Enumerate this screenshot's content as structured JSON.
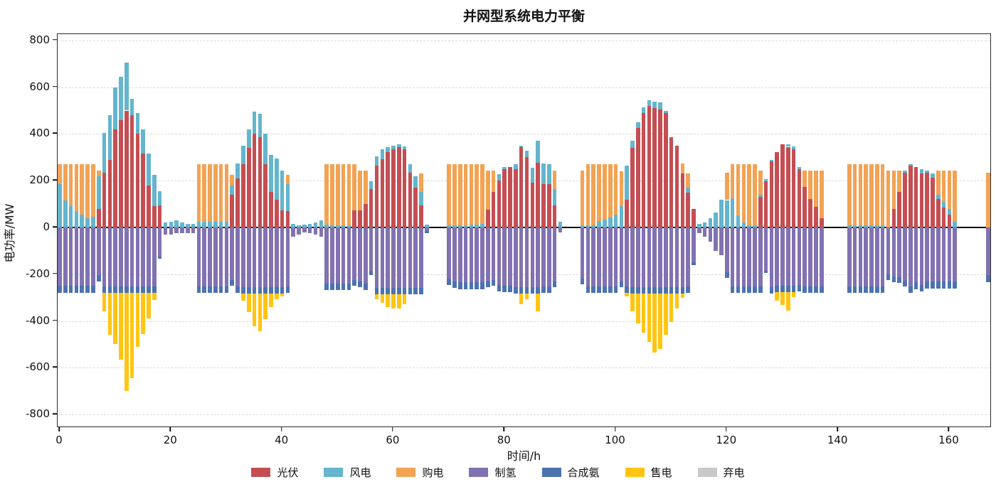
{
  "title": "并网型系统电力平衡",
  "axes": {
    "ylabel": "电功率/MW",
    "xlabel": "时间/h",
    "yticks": [
      -800,
      -600,
      -400,
      -200,
      0,
      200,
      400,
      600,
      800
    ],
    "xticks": [
      0,
      20,
      40,
      60,
      80,
      100,
      120,
      140,
      160
    ]
  },
  "chart_data": {
    "type": "bar",
    "stacked": true,
    "hours": 168,
    "xlim": [
      0,
      168
    ],
    "ylim": [
      -855,
      830
    ],
    "grid": "dashed horizontal",
    "legend_position": "bottom center",
    "title": "并网型系统电力平衡",
    "xlabel": "时间/h",
    "ylabel": "电功率/MW",
    "series": [
      {
        "name": "光伏",
        "color": "#c44e52",
        "values": [
          0,
          0,
          0,
          0,
          0,
          0,
          0,
          80,
          235,
          290,
          420,
          460,
          500,
          480,
          400,
          315,
          180,
          90,
          95,
          0,
          0,
          0,
          0,
          0,
          0,
          0,
          0,
          0,
          0,
          0,
          0,
          140,
          210,
          270,
          340,
          400,
          385,
          270,
          153,
          118,
          73,
          70,
          0,
          0,
          0,
          0,
          0,
          0,
          0,
          0,
          0,
          0,
          0,
          72,
          72,
          100,
          163,
          265,
          293,
          322,
          335,
          342,
          333,
          235,
          170,
          95,
          0,
          0,
          0,
          0,
          0,
          0,
          0,
          0,
          0,
          0,
          0,
          77,
          151,
          202,
          248,
          259,
          250,
          342,
          301,
          191,
          276,
          185,
          185,
          94,
          0,
          0,
          0,
          0,
          0,
          0,
          0,
          0,
          0,
          0,
          0,
          0,
          120,
          340,
          425,
          490,
          520,
          510,
          505,
          490,
          385,
          350,
          230,
          150,
          80,
          0,
          0,
          0,
          0,
          0,
          0,
          0,
          0,
          0,
          0,
          0,
          131,
          197,
          282,
          322,
          356,
          345,
          335,
          248,
          174,
          123,
          89,
          40,
          0,
          0,
          0,
          0,
          0,
          0,
          0,
          0,
          0,
          0,
          0,
          0,
          80,
          153,
          233,
          265,
          259,
          231,
          233,
          214,
          123,
          85,
          55,
          0,
          0,
          0,
          0,
          0,
          0,
          0
        ]
      },
      {
        "name": "风电",
        "color": "#64b5cd",
        "values": [
          185,
          115,
          90,
          70,
          55,
          40,
          45,
          140,
          170,
          190,
          180,
          185,
          205,
          70,
          90,
          105,
          135,
          135,
          60,
          20,
          25,
          30,
          20,
          15,
          15,
          25,
          25,
          25,
          25,
          25,
          25,
          40,
          65,
          80,
          80,
          96,
          100,
          130,
          157,
          176,
          171,
          115,
          15,
          10,
          12,
          15,
          20,
          30,
          12,
          10,
          10,
          10,
          10,
          0,
          0,
          0,
          34,
          40,
          40,
          20,
          15,
          14,
          14,
          35,
          50,
          57,
          12,
          0,
          0,
          0,
          8,
          8,
          8,
          10,
          12,
          12,
          15,
          0,
          0,
          26,
          11,
          0,
          20,
          8,
          26,
          65,
          94,
          89,
          86,
          69,
          24,
          0,
          0,
          0,
          8,
          10,
          10,
          26,
          32,
          43,
          55,
          90,
          145,
          30,
          25,
          25,
          25,
          28,
          30,
          10,
          0,
          0,
          0,
          20,
          0,
          15,
          20,
          40,
          65,
          120,
          117,
          125,
          52,
          20,
          8,
          8,
          10,
          10,
          8,
          0,
          0,
          12,
          12,
          10,
          0,
          0,
          0,
          0,
          0,
          0,
          0,
          0,
          8,
          8,
          8,
          8,
          8,
          8,
          8,
          0,
          0,
          0,
          11,
          6,
          0,
          17,
          11,
          17,
          17,
          23,
          25,
          25,
          0,
          0,
          0,
          0,
          0,
          0
        ]
      },
      {
        "name": "购电",
        "color": "#f2a354",
        "values": [
          85,
          155,
          180,
          200,
          215,
          230,
          225,
          22,
          0,
          0,
          0,
          0,
          0,
          0,
          0,
          0,
          0,
          0,
          0,
          0,
          0,
          0,
          0,
          0,
          0,
          245,
          245,
          245,
          245,
          245,
          245,
          45,
          0,
          0,
          0,
          0,
          0,
          0,
          0,
          0,
          0,
          40,
          0,
          0,
          0,
          0,
          0,
          0,
          258,
          260,
          260,
          260,
          260,
          198,
          170,
          142,
          0,
          0,
          0,
          0,
          0,
          0,
          0,
          0,
          0,
          78,
          0,
          0,
          0,
          0,
          262,
          262,
          262,
          260,
          258,
          258,
          255,
          165,
          91,
          0,
          0,
          0,
          0,
          0,
          0,
          0,
          0,
          0,
          0,
          79,
          0,
          0,
          0,
          0,
          234,
          260,
          260,
          244,
          238,
          227,
          215,
          150,
          0,
          0,
          0,
          0,
          0,
          0,
          0,
          0,
          0,
          0,
          45,
          60,
          0,
          0,
          0,
          0,
          0,
          0,
          116,
          145,
          218,
          250,
          262,
          262,
          101,
          0,
          0,
          0,
          0,
          0,
          0,
          0,
          68,
          119,
          153,
          202,
          0,
          0,
          0,
          0,
          262,
          262,
          262,
          262,
          262,
          262,
          262,
          242,
          162,
          89,
          0,
          0,
          0,
          0,
          0,
          0,
          102,
          134,
          162,
          217,
          0,
          0,
          0,
          0,
          0,
          235
        ]
      },
      {
        "name": "制氢",
        "color": "#8172b2",
        "values": [
          -250,
          -250,
          -250,
          -250,
          -250,
          -250,
          -250,
          -205,
          -252,
          -252,
          -252,
          -252,
          -252,
          -252,
          -252,
          -252,
          -252,
          -252,
          -125,
          -30,
          -30,
          -25,
          -25,
          -25,
          -25,
          -252,
          -252,
          -252,
          -252,
          -252,
          -252,
          -224,
          -252,
          -255,
          -255,
          -255,
          -255,
          -255,
          -255,
          -255,
          -255,
          -252,
          -38,
          -30,
          -20,
          -25,
          -30,
          -40,
          -240,
          -240,
          -240,
          -240,
          -240,
          -224,
          -230,
          -241,
          -184,
          -258,
          -258,
          -258,
          -258,
          -258,
          -258,
          -258,
          -258,
          -258,
          -15,
          0,
          0,
          0,
          -218,
          -230,
          -235,
          -235,
          -235,
          -235,
          -235,
          -230,
          -225,
          -245,
          -250,
          -250,
          -255,
          -255,
          -255,
          -255,
          -255,
          -252,
          -252,
          -230,
          -20,
          0,
          0,
          0,
          -218,
          -252,
          -252,
          -252,
          -252,
          -252,
          -252,
          -230,
          -252,
          -255,
          -255,
          -255,
          -255,
          -255,
          -255,
          -255,
          -255,
          -255,
          -255,
          -252,
          -150,
          -25,
          -40,
          -60,
          -100,
          -120,
          -190,
          -252,
          -252,
          -252,
          -252,
          -252,
          -252,
          -184,
          -255,
          -250,
          -250,
          -250,
          -250,
          -247,
          -252,
          -252,
          -252,
          -252,
          0,
          0,
          0,
          0,
          -252,
          -252,
          -252,
          -252,
          -252,
          -252,
          -252,
          -201,
          -210,
          -212,
          -228,
          -252,
          -235,
          -245,
          -232,
          -232,
          -232,
          -232,
          -232,
          -232,
          0,
          0,
          0,
          0,
          0,
          -205
        ]
      },
      {
        "name": "合成氨",
        "color": "#4c72b0",
        "values": [
          -30,
          -30,
          -30,
          -30,
          -30,
          -30,
          -30,
          -25,
          -28,
          -28,
          -28,
          -28,
          -28,
          -28,
          -28,
          -28,
          -28,
          -28,
          -10,
          0,
          0,
          0,
          0,
          0,
          0,
          -28,
          -28,
          -28,
          -28,
          -28,
          -28,
          -25,
          -28,
          -28,
          -28,
          -28,
          -28,
          -28,
          -28,
          -28,
          -28,
          -28,
          0,
          0,
          0,
          0,
          0,
          0,
          -28,
          -28,
          -28,
          -28,
          -28,
          -25,
          -25,
          -25,
          -20,
          -28,
          -28,
          -28,
          -28,
          -28,
          -28,
          -28,
          -28,
          -28,
          -8,
          0,
          0,
          0,
          -28,
          -28,
          -28,
          -28,
          -28,
          -28,
          -28,
          -25,
          -25,
          -28,
          -28,
          -28,
          -28,
          -28,
          -28,
          -28,
          -28,
          -28,
          -28,
          -25,
          0,
          0,
          0,
          0,
          -25,
          -28,
          -28,
          -28,
          -28,
          -28,
          -28,
          -25,
          -28,
          -28,
          -28,
          -28,
          -28,
          -28,
          -28,
          -28,
          -28,
          -28,
          -28,
          -28,
          -10,
          0,
          0,
          0,
          0,
          0,
          -25,
          -28,
          -28,
          -28,
          -28,
          -28,
          -28,
          -12,
          -28,
          -28,
          -28,
          -28,
          -28,
          -28,
          -28,
          -28,
          -28,
          -28,
          0,
          0,
          0,
          0,
          -28,
          -28,
          -28,
          -28,
          -28,
          -28,
          -28,
          -25,
          -25,
          -25,
          -25,
          -28,
          -28,
          -28,
          -28,
          -28,
          -28,
          -28,
          -28,
          -28,
          0,
          0,
          0,
          0,
          0,
          -28
        ]
      },
      {
        "name": "售电",
        "color": "#ffc512",
        "values": [
          0,
          0,
          0,
          0,
          0,
          0,
          0,
          0,
          -80,
          -180,
          -220,
          -285,
          -420,
          -365,
          -230,
          -175,
          -110,
          -30,
          0,
          0,
          0,
          0,
          0,
          0,
          0,
          0,
          0,
          0,
          0,
          0,
          0,
          0,
          0,
          -30,
          -80,
          -140,
          -160,
          -110,
          -58,
          -25,
          -12,
          0,
          0,
          0,
          0,
          0,
          0,
          0,
          0,
          0,
          0,
          0,
          0,
          0,
          0,
          0,
          0,
          -20,
          -35,
          -55,
          -60,
          -60,
          -42,
          0,
          0,
          0,
          0,
          0,
          0,
          0,
          0,
          0,
          0,
          0,
          0,
          0,
          0,
          0,
          0,
          0,
          0,
          0,
          0,
          -45,
          -25,
          0,
          -75,
          0,
          0,
          0,
          0,
          0,
          0,
          0,
          0,
          0,
          0,
          0,
          0,
          0,
          0,
          0,
          -15,
          -77,
          -127,
          -167,
          -207,
          -252,
          -237,
          -177,
          -122,
          -62,
          -17,
          0,
          0,
          0,
          0,
          0,
          0,
          0,
          0,
          0,
          0,
          0,
          0,
          0,
          0,
          0,
          0,
          -35,
          -52,
          -78,
          -20,
          0,
          0,
          0,
          0,
          0,
          0,
          0,
          0,
          0,
          0,
          0,
          0,
          0,
          0,
          0,
          0,
          0,
          0,
          0,
          0,
          0,
          0,
          0,
          0,
          0,
          0,
          0,
          0,
          0,
          0,
          0,
          0,
          0,
          0,
          0
        ]
      },
      {
        "name": "弃电",
        "color": "#c9c9c9",
        "values": [
          0,
          0,
          0,
          0,
          0,
          0,
          0,
          0,
          0,
          0,
          0,
          0,
          0,
          0,
          0,
          0,
          0,
          0,
          0,
          0,
          0,
          0,
          0,
          0,
          0,
          0,
          0,
          0,
          0,
          0,
          0,
          0,
          0,
          0,
          0,
          0,
          0,
          0,
          0,
          0,
          0,
          0,
          0,
          0,
          0,
          0,
          0,
          0,
          0,
          0,
          0,
          0,
          0,
          0,
          0,
          0,
          0,
          0,
          0,
          0,
          0,
          0,
          0,
          0,
          0,
          0,
          0,
          0,
          0,
          0,
          0,
          0,
          0,
          0,
          0,
          0,
          0,
          0,
          0,
          0,
          0,
          0,
          0,
          0,
          0,
          0,
          0,
          0,
          0,
          0,
          0,
          0,
          0,
          0,
          0,
          0,
          0,
          0,
          0,
          0,
          0,
          0,
          0,
          0,
          0,
          0,
          0,
          0,
          0,
          0,
          0,
          0,
          0,
          0,
          0,
          0,
          0,
          0,
          0,
          0,
          0,
          0,
          0,
          0,
          0,
          0,
          0,
          0,
          0,
          0,
          0,
          0,
          0,
          0,
          0,
          0,
          0,
          0,
          0,
          0,
          0,
          0,
          0,
          0,
          0,
          0,
          0,
          0,
          0,
          0,
          0,
          0,
          0,
          0,
          0,
          0,
          0,
          0,
          0,
          0,
          0,
          0,
          0,
          0,
          0,
          0,
          0,
          0
        ]
      }
    ]
  }
}
